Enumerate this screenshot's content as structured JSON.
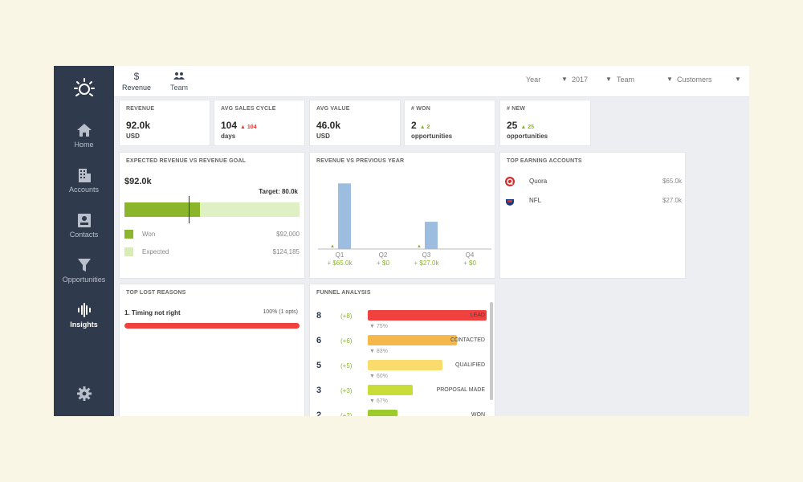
{
  "sidebar": {
    "items": [
      {
        "label": "Home",
        "icon": "home-icon"
      },
      {
        "label": "Accounts",
        "icon": "building-icon"
      },
      {
        "label": "Contacts",
        "icon": "contact-card-icon"
      },
      {
        "label": "Opportunities",
        "icon": "funnel-icon"
      },
      {
        "label": "Insights",
        "icon": "waveform-icon",
        "active": true
      }
    ],
    "settings_icon": "gear-icon"
  },
  "tabs": [
    {
      "label": "Revenue",
      "icon_glyph": "$"
    },
    {
      "label": "Team",
      "icon_glyph": "👥"
    }
  ],
  "filters": [
    {
      "label": "Year"
    },
    {
      "label": "2017"
    },
    {
      "label": "Team"
    },
    {
      "label": "Customers"
    }
  ],
  "kpis": [
    {
      "title": "REVENUE",
      "value": "92.0k",
      "unit": "USD",
      "delta": ""
    },
    {
      "title": "AVG SALES CYCLE",
      "value": "104",
      "unit": "days",
      "delta": "▲ 104",
      "delta_color": "#e53935"
    },
    {
      "title": "AVG VALUE",
      "value": "46.0k",
      "unit": "USD",
      "delta": ""
    },
    {
      "title": "# WON",
      "value": "2",
      "unit": "opportunities",
      "delta": "▲ 2",
      "delta_color": "#8bb52a"
    },
    {
      "title": "# NEW",
      "value": "25",
      "unit": "opportunities",
      "delta": "▲ 25",
      "delta_color": "#8bb52a"
    }
  ],
  "goal": {
    "title": "EXPECTED REVENUE VS REVENUE GOAL",
    "amount": "$92.0k",
    "target_label": "Target: 80.0k",
    "won_fraction": 0.43,
    "target_fraction": 0.365,
    "legend": [
      {
        "label": "Won",
        "value": "$92,000",
        "color": "#8bb52a"
      },
      {
        "label": "Expected",
        "value": "$124,185",
        "color": "#d8ecb6"
      }
    ]
  },
  "chart_data": {
    "type": "bar",
    "title": "REVENUE VS PREVIOUS YEAR",
    "categories": [
      "Q1",
      "Q2",
      "Q3",
      "Q4"
    ],
    "values": [
      65.0,
      0,
      27.0,
      0
    ],
    "delta_labels": [
      "+ $65.0k",
      "+ $0",
      "+ $27.0k",
      "+ $0"
    ],
    "ylim": [
      0,
      70
    ],
    "bar_color": "#9dbde0"
  },
  "top_accounts": {
    "title": "TOP EARNING ACCOUNTS",
    "rows": [
      {
        "name": "Quora",
        "value": "$65.0k",
        "icon": "quora-logo-icon"
      },
      {
        "name": "NFL",
        "value": "$27.0k",
        "icon": "nfl-logo-icon"
      }
    ]
  },
  "lost": {
    "title": "TOP LOST REASONS",
    "rows": [
      {
        "label": "1. Timing not right",
        "stat": "100% (1 opts)",
        "fraction": 1.0
      }
    ]
  },
  "funnel": {
    "title": "FUNNEL ANALYSIS",
    "stages": [
      {
        "count": "8",
        "delta": "(+8)",
        "label": "LEAD",
        "fraction": 1.0,
        "color": "#f0413e",
        "conv": "▼ 75%"
      },
      {
        "count": "6",
        "delta": "(+6)",
        "label": "CONTACTED",
        "fraction": 0.75,
        "color": "#f7b84b",
        "conv": "▼ 83%"
      },
      {
        "count": "5",
        "delta": "(+5)",
        "label": "QUALIFIED",
        "fraction": 0.625,
        "color": "#f9dc6b",
        "conv": "▼ 60%"
      },
      {
        "count": "3",
        "delta": "(+3)",
        "label": "PROPOSAL MADE",
        "fraction": 0.38,
        "color": "#c9dd3a",
        "conv": "▼ 67%"
      },
      {
        "count": "2",
        "delta": "(+2)",
        "label": "WON",
        "fraction": 0.25,
        "color": "#9ccc2c",
        "conv": ""
      }
    ]
  }
}
